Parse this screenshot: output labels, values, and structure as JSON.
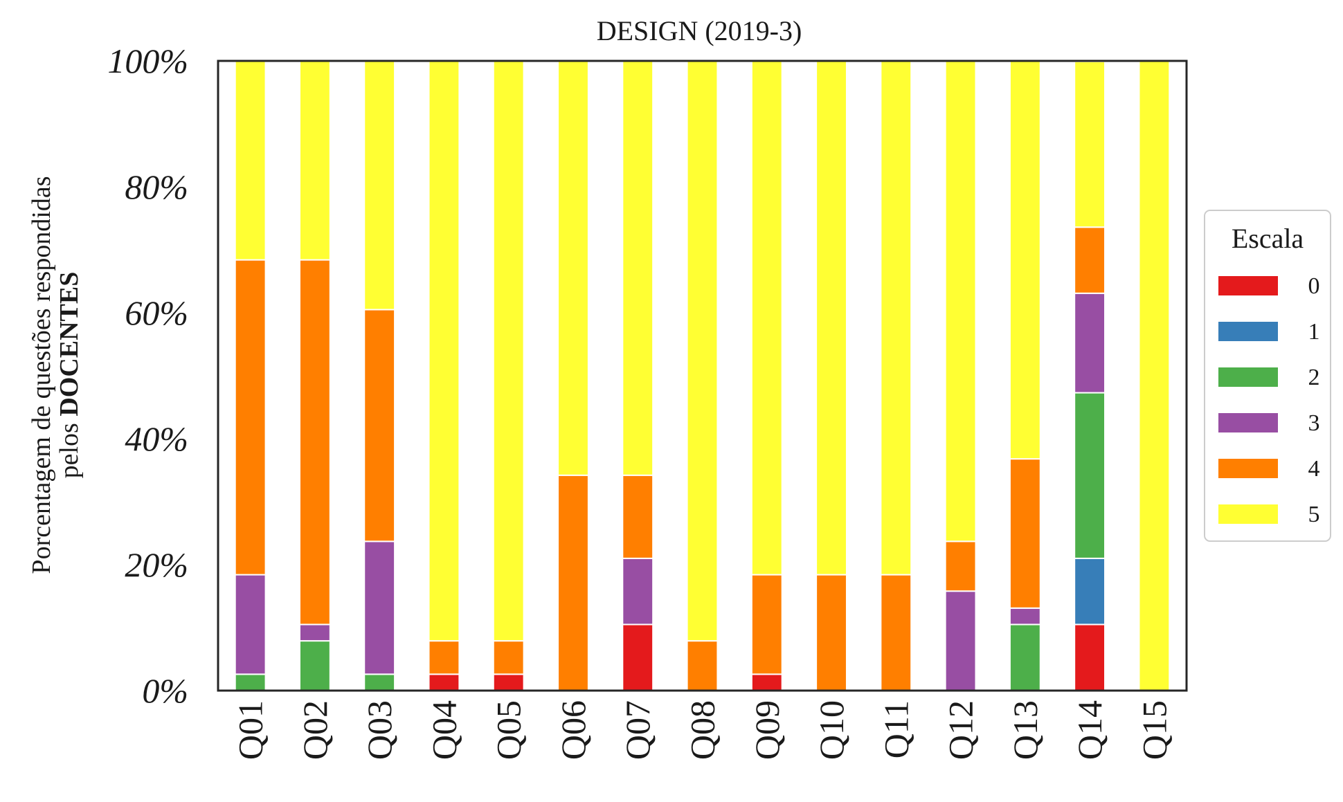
{
  "chart_data": {
    "type": "bar",
    "stacked": true,
    "title": "DESIGN (2019-3)",
    "ylabel": {
      "line1": "Porcentagem de questões respondidas",
      "line2_prefix": "pelos ",
      "line2_bold": "DOCENTES"
    },
    "xlabel": "",
    "ylim": [
      0,
      100
    ],
    "yticks": [
      "0%",
      "20%",
      "40%",
      "60%",
      "80%",
      "100%"
    ],
    "categories": [
      "Q01",
      "Q02",
      "Q03",
      "Q04",
      "Q05",
      "Q06",
      "Q07",
      "Q08",
      "Q09",
      "Q10",
      "Q11",
      "Q12",
      "Q13",
      "Q14",
      "Q15"
    ],
    "legend": {
      "title": "Escala",
      "position": "right"
    },
    "series": [
      {
        "name": "0",
        "color": "#e41a1c",
        "values": [
          0,
          0,
          0,
          2.6,
          2.6,
          0,
          10.5,
          0,
          2.6,
          0,
          0,
          0,
          0,
          10.5,
          0
        ]
      },
      {
        "name": "1",
        "color": "#377eb8",
        "values": [
          0,
          0,
          0,
          0,
          0,
          0,
          0,
          0,
          0,
          0,
          0,
          0,
          0,
          10.5,
          0
        ]
      },
      {
        "name": "2",
        "color": "#4daf4a",
        "values": [
          2.6,
          7.9,
          2.6,
          0,
          0,
          0,
          0,
          0,
          0,
          0,
          0,
          0,
          10.5,
          26.3,
          0
        ]
      },
      {
        "name": "3",
        "color": "#984ea3",
        "values": [
          15.8,
          2.6,
          21.1,
          0,
          0,
          0,
          10.5,
          0,
          0,
          0,
          0,
          15.8,
          2.6,
          15.8,
          0
        ]
      },
      {
        "name": "4",
        "color": "#ff7f00",
        "values": [
          50.0,
          57.9,
          36.8,
          5.3,
          5.3,
          34.2,
          13.2,
          7.9,
          15.8,
          18.4,
          18.4,
          7.9,
          23.7,
          10.5,
          0
        ]
      },
      {
        "name": "5",
        "color": "#ffff33",
        "values": [
          31.6,
          31.6,
          39.5,
          92.1,
          92.1,
          65.8,
          65.8,
          92.1,
          81.6,
          81.6,
          81.6,
          76.3,
          63.2,
          26.3,
          100
        ]
      }
    ]
  }
}
